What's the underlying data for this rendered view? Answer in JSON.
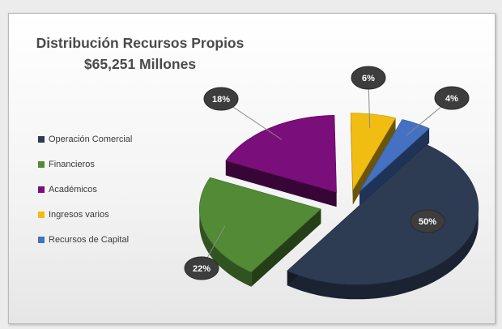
{
  "chart_data": {
    "type": "pie",
    "title_line1": "Distribución Recursos Propios",
    "title_line2": "$65,251 Millones",
    "slices": [
      {
        "label": "Operación Comercial",
        "value": 50,
        "display": "50%",
        "color": "#2d3b53"
      },
      {
        "label": "Financieros",
        "value": 22,
        "display": "22%",
        "color": "#528a36"
      },
      {
        "label": "Académicos",
        "value": 18,
        "display": "18%",
        "color": "#7a0e7a"
      },
      {
        "label": "Ingresos varios",
        "value": 6,
        "display": "6%",
        "color": "#f2bd12"
      },
      {
        "label": "Recursos de Capital",
        "value": 4,
        "display": "4%",
        "color": "#4471c1"
      }
    ],
    "legend_position": "left"
  }
}
